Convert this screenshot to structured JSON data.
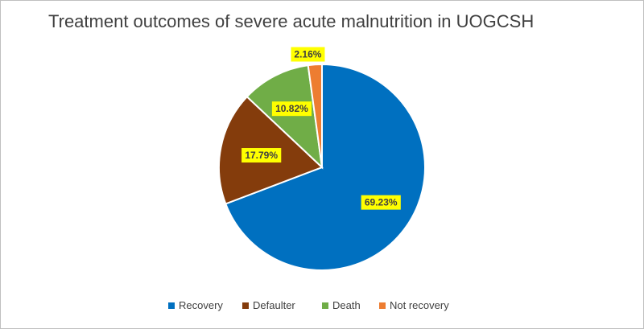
{
  "chart_data": {
    "type": "pie",
    "title": "Treatment outcomes of severe acute malnutrition in UOGCSH",
    "categories": [
      "Recovery",
      "Defaulter",
      "Death",
      "Not recovery"
    ],
    "values": [
      69.23,
      17.79,
      10.82,
      2.16
    ],
    "value_labels": [
      "69.23%",
      "17.79%",
      "10.82%",
      "2.16%"
    ],
    "colors": [
      "#0070c0",
      "#843c0c",
      "#70ad47",
      "#ed7d31"
    ],
    "data_label_background": "#ffff00",
    "legend_position": "bottom",
    "start_angle_deg": 0,
    "direction": "clockwise"
  }
}
